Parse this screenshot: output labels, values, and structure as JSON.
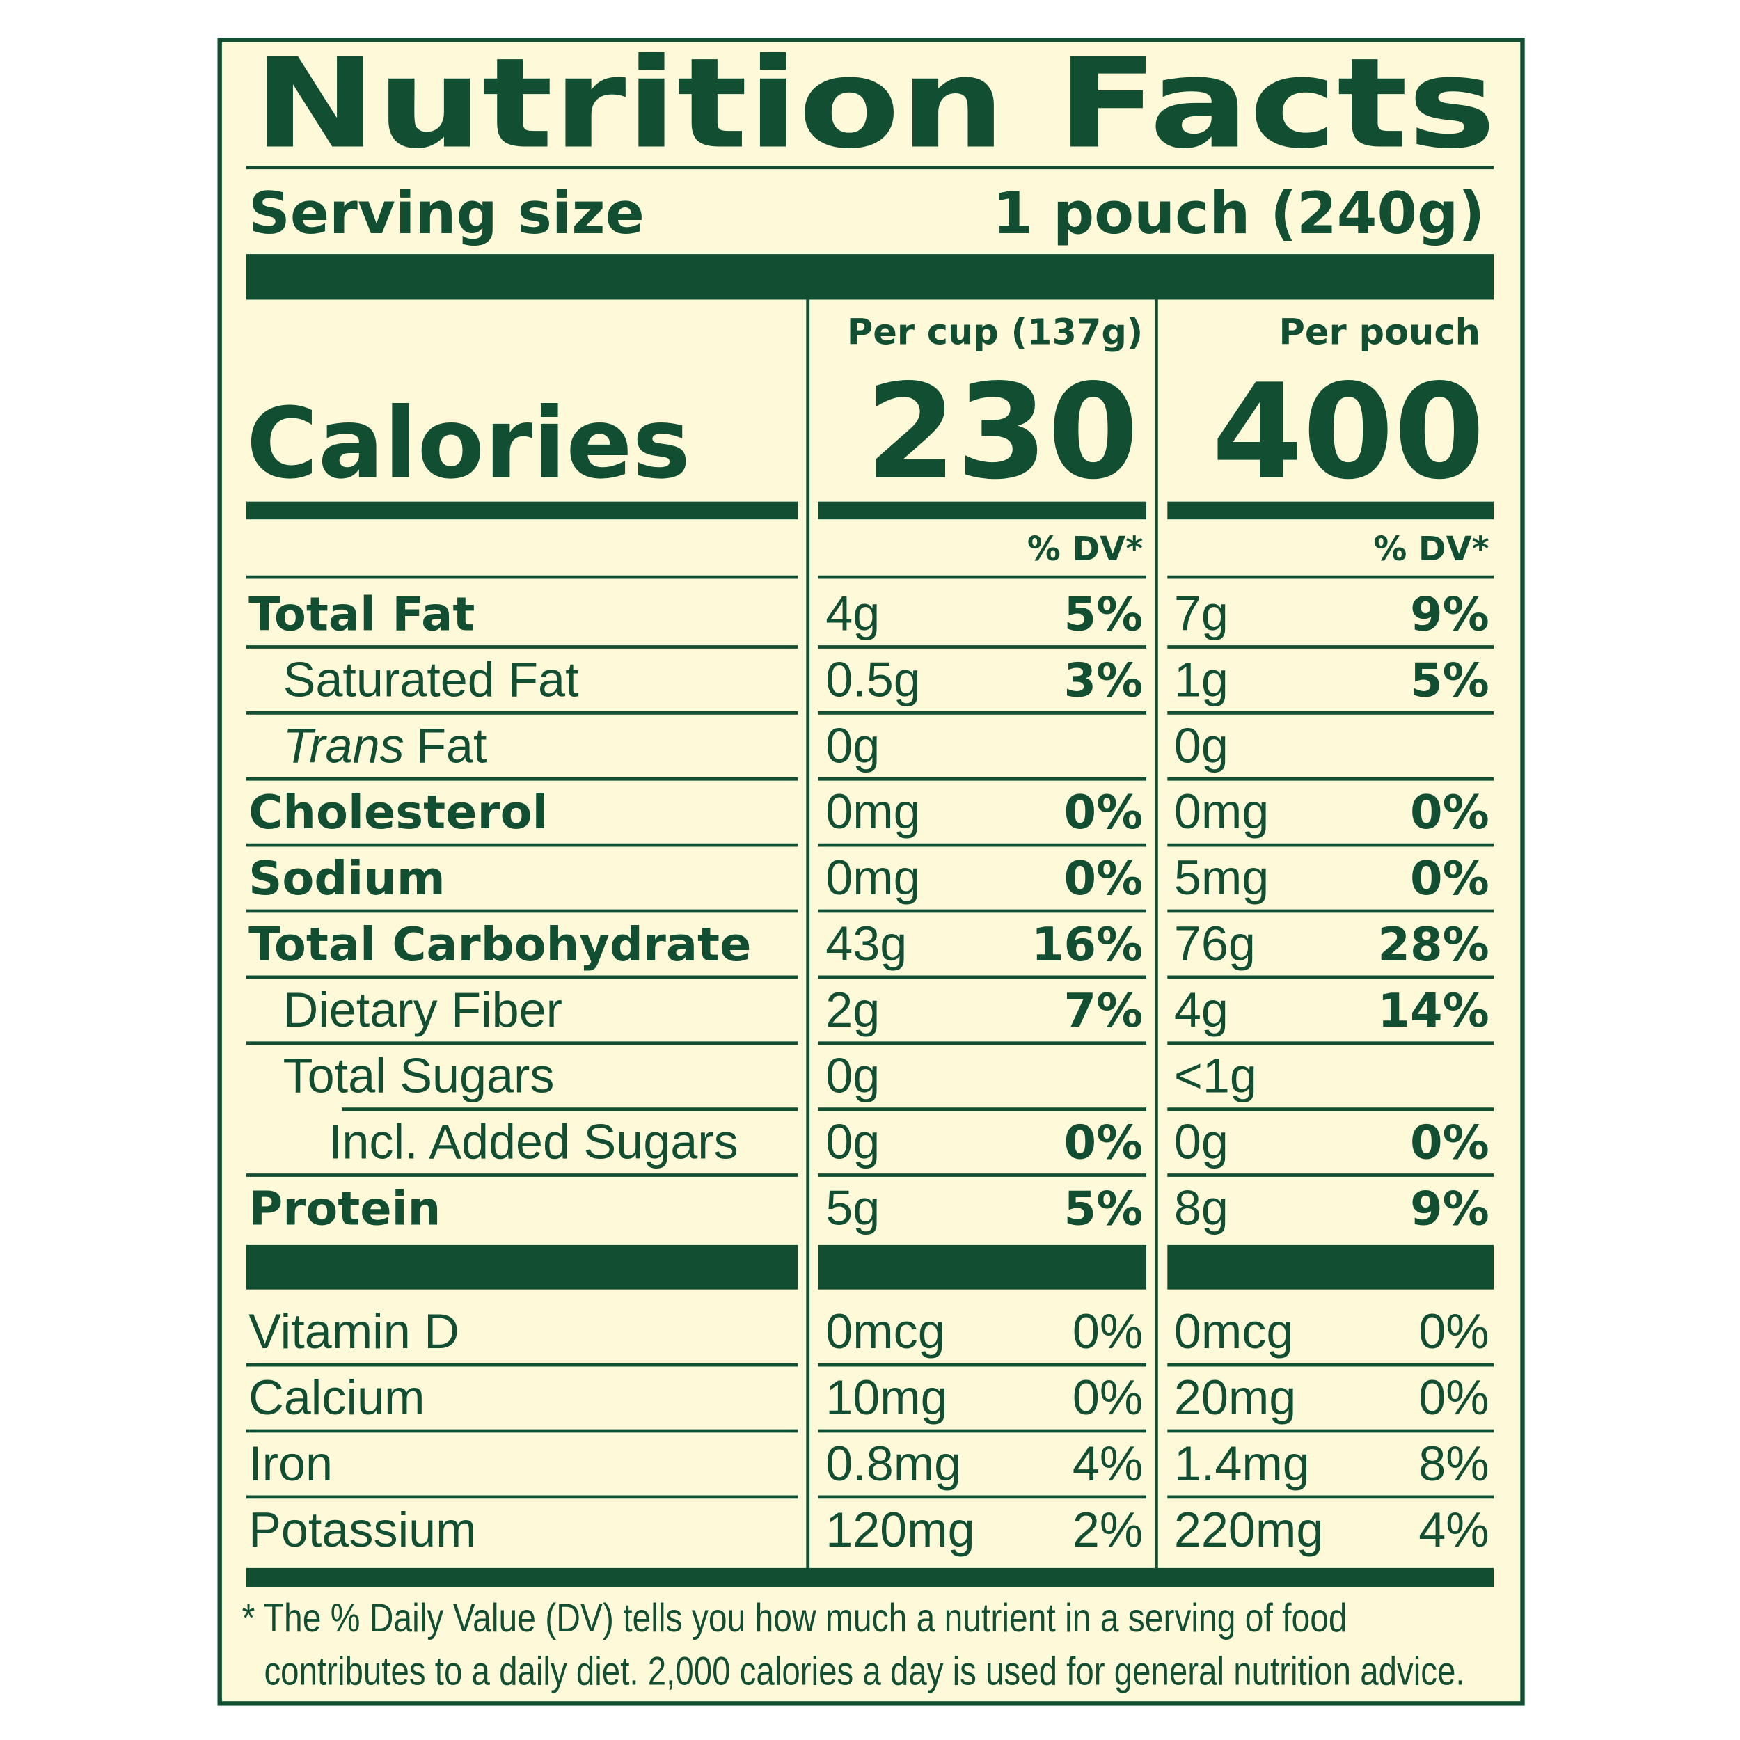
{
  "title": "Nutrition Facts",
  "serving": {
    "label": "Serving size",
    "value": "1 pouch (240g)"
  },
  "calories_label": "Calories",
  "columns": [
    {
      "header": "Per cup (137g)",
      "calories": 230,
      "dv_header": "% DV*"
    },
    {
      "header": "Per pouch",
      "calories": 400,
      "dv_header": "% DV*"
    }
  ],
  "nutrients": [
    {
      "name": "Total Fat",
      "amounts": [
        "4g",
        "7g"
      ],
      "dv": [
        "5%",
        "9%"
      ]
    },
    {
      "name": "Saturated Fat",
      "amounts": [
        "0.5g",
        "1g"
      ],
      "dv": [
        "3%",
        "5%"
      ]
    },
    {
      "name_italic": "Trans",
      "name": "Fat",
      "amounts": [
        "0g",
        "0g"
      ]
    },
    {
      "name": "Cholesterol",
      "amounts": [
        "0mg",
        "0mg"
      ],
      "dv": [
        "0%",
        "0%"
      ]
    },
    {
      "name": "Sodium",
      "amounts": [
        "0mg",
        "5mg"
      ],
      "dv": [
        "0%",
        "0%"
      ]
    },
    {
      "name": "Total Carbohydrate",
      "amounts": [
        "43g",
        "76g"
      ],
      "dv": [
        "16%",
        "28%"
      ]
    },
    {
      "name": "Dietary Fiber",
      "amounts": [
        "2g",
        "4g"
      ],
      "dv": [
        "7%",
        "14%"
      ]
    },
    {
      "name": "Total Sugars",
      "amounts": [
        "0g",
        "<1g"
      ]
    },
    {
      "name": "Incl. Added Sugars",
      "amounts": [
        "0g",
        "0g"
      ],
      "dv": [
        "0%",
        "0%"
      ]
    },
    {
      "name": "Protein",
      "amounts": [
        "5g",
        "8g"
      ],
      "dv": [
        "5%",
        "9%"
      ]
    }
  ],
  "vitamins": [
    {
      "name": "Vitamin D",
      "amounts": [
        "0mcg",
        "0mcg"
      ],
      "dv": [
        "0%",
        "0%"
      ]
    },
    {
      "name": "Calcium",
      "amounts": [
        "10mg",
        "20mg"
      ],
      "dv": [
        "0%",
        "0%"
      ]
    },
    {
      "name": "Iron",
      "amounts": [
        "0.8mg",
        "1.4mg"
      ],
      "dv": [
        "4%",
        "8%"
      ]
    },
    {
      "name": "Potassium",
      "amounts": [
        "120mg",
        "220mg"
      ],
      "dv": [
        "2%",
        "4%"
      ]
    }
  ],
  "footnote": [
    "* The % Daily Value (DV) tells you how much a nutrient in a serving of food",
    "contributes to a daily diet. 2,000 calories a day is used for general nutrition advice."
  ]
}
